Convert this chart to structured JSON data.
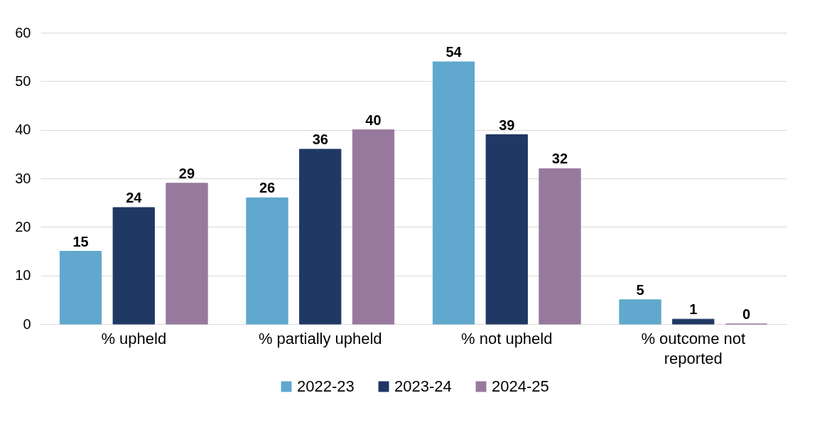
{
  "chart_data": {
    "type": "bar",
    "categories": [
      "% upheld",
      "% partially upheld",
      "% not upheld",
      "% outcome not reported"
    ],
    "series": [
      {
        "name": "2022-23",
        "color": "#60a8cd",
        "values": [
          15,
          26,
          54,
          5
        ]
      },
      {
        "name": "2023-24",
        "color": "#203864",
        "values": [
          24,
          36,
          39,
          1
        ]
      },
      {
        "name": "2024-25",
        "color": "#98799e",
        "values": [
          29,
          40,
          32,
          0
        ]
      }
    ],
    "ylim": [
      0,
      60
    ],
    "yticks": [
      0,
      10,
      20,
      30,
      40,
      50,
      60
    ],
    "grid": "y",
    "legend": "bottom",
    "data_labels": true
  }
}
